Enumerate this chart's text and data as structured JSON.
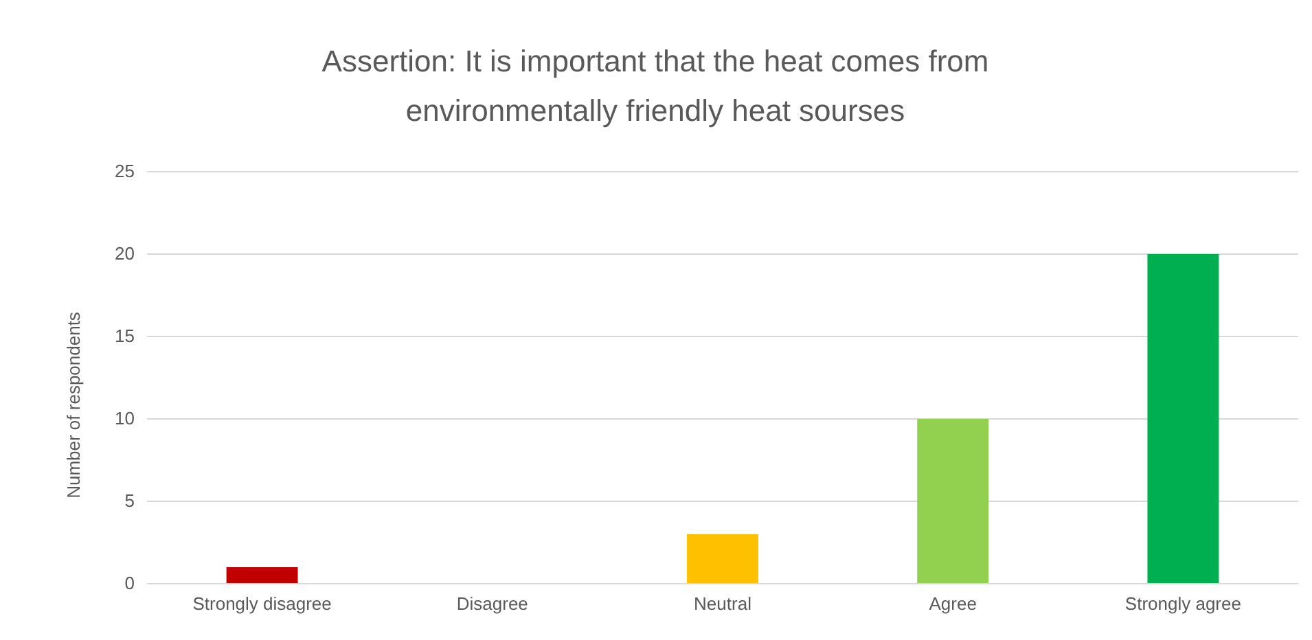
{
  "chart_data": {
    "type": "bar",
    "title": "Assertion: It is important that the heat comes from environmentally friendly heat sourses",
    "ylabel": "Number of respondents",
    "categories": [
      "Strongly disagree",
      "Disagree",
      "Neutral",
      "Agree",
      "Strongly agree"
    ],
    "values": [
      1,
      0,
      3,
      10,
      20
    ],
    "colors": [
      "#c00000",
      "#ff0000",
      "#ffc000",
      "#92d050",
      "#00b050"
    ],
    "ylim": [
      0,
      25
    ],
    "yticks": [
      0,
      5,
      10,
      15,
      20,
      25
    ],
    "grid": "y"
  }
}
